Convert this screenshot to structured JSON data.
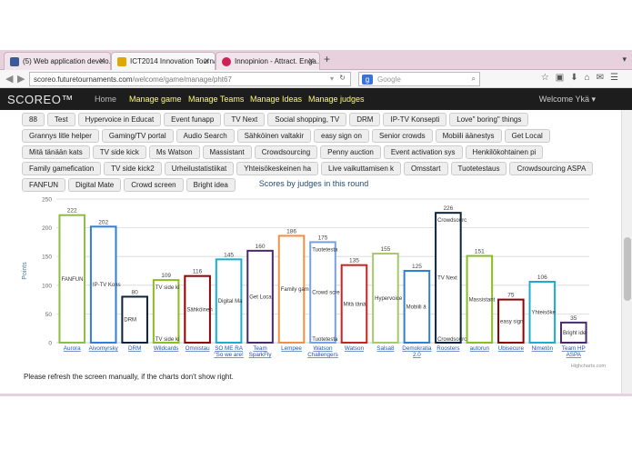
{
  "browser": {
    "tabs": [
      {
        "label": "(5) Web application develo...",
        "favicon_color": "#3b5998"
      },
      {
        "label": "ICT2014 Innovation Tourna...",
        "favicon_color": "#e0a800"
      },
      {
        "label": "Innopinion - Attract. Enga...",
        "favicon_color": "#cc2255"
      }
    ],
    "new_tab": "+",
    "url_host": "scoreo.futuretournaments.com",
    "url_path": "/welcome/game/manage/pht67",
    "search_engine": "g",
    "search_placeholder": "Google"
  },
  "app": {
    "brand": "SCOREO™",
    "nav": [
      "Home",
      "Manage game",
      "Manage Teams",
      "Manage Ideas",
      "Manage judges"
    ],
    "welcome": "Welcome Ykä"
  },
  "ideas": [
    "88",
    "Test",
    "Hypervoice in Educat",
    "Event funapp",
    "TV Next",
    "Social shopping, TV",
    "DRM",
    "IP-TV Konsepti",
    "Love\" boring\" things",
    "Grannys litle helper",
    "Gaming/TV portal",
    "Audio Search",
    "Sähköinen valtakir",
    "easy sign on",
    "Senior crowds",
    "Mobiili äänestys",
    "Get Local",
    "Mitä tänään kats",
    "TV side kick",
    "Ms Watson",
    "Massistant",
    "Crowdsourcing",
    "Penny auction",
    "Event activation sys",
    "Henkilökohtainen pi",
    "Family gamefication",
    "TV side kick2",
    "Urheilustatistiikat",
    "Yhteisökeskeinen ha",
    "Live vaikuttamisen k",
    "Omsstart",
    "Tuotetestaus",
    "Crowdsourcing ASPA",
    "FANFUN",
    "Digital Mate",
    "Crowd screen",
    "Bright idea"
  ],
  "note": "Please refresh the screen manually, if the charts don't show right.",
  "credit": "Highcharts.com",
  "chart_data": {
    "type": "bar",
    "title": "Scores by judges in this round",
    "ylabel": "Points",
    "xlabel": "",
    "ylim": [
      0,
      250
    ],
    "yticks": [
      0,
      50,
      100,
      150,
      200,
      250
    ],
    "grid": true,
    "categories": [
      "Aurora",
      "Aivomyrsky",
      "DRM",
      "Wildcards",
      "Omnistau",
      "SO ME RA \"So we are!",
      "Team SparkFly",
      "Lempee",
      "Watson Challengers",
      "Watson",
      "Salsa8",
      "Demokratia 2.0",
      "Roosters",
      "autorun",
      "Ubisecure",
      "Nimetön",
      "Team HP ASPA"
    ],
    "values": [
      222,
      202,
      80,
      109,
      116,
      145,
      160,
      186,
      175,
      135,
      155,
      125,
      226,
      151,
      75,
      106,
      35
    ],
    "colors": [
      "#8fbc45",
      "#2f7ed8",
      "#0d233a",
      "#8bbc21",
      "#910000",
      "#1aadce",
      "#492970",
      "#f28f43",
      "#77a1e5",
      "#c42525",
      "#a6c96a",
      "#2f7ed8",
      "#0d233a",
      "#8bbc21",
      "#910000",
      "#1aadce",
      "#492970"
    ],
    "bar_labels": [
      [
        "FANFUN"
      ],
      [
        "IP-TV Kons"
      ],
      [
        "DRM"
      ],
      [
        "TV side ki",
        "TV side ki"
      ],
      [
        "Sähköinen"
      ],
      [
        "Digital Ma"
      ],
      [
        "Get Loca"
      ],
      [
        "Family gam"
      ],
      [
        "Tuotetesta",
        "Crowd scre",
        "Tuotetesta"
      ],
      [
        "Mitä tänä"
      ],
      [
        "Hypervoice"
      ],
      [
        "Mobiili ä"
      ],
      [
        "Crowdsourc",
        "TV Next",
        "Crowdsourc"
      ],
      [
        "Massistant"
      ],
      [
        "easy sign"
      ],
      [
        "Yhteisöke"
      ],
      [
        "Bright ide"
      ]
    ]
  }
}
